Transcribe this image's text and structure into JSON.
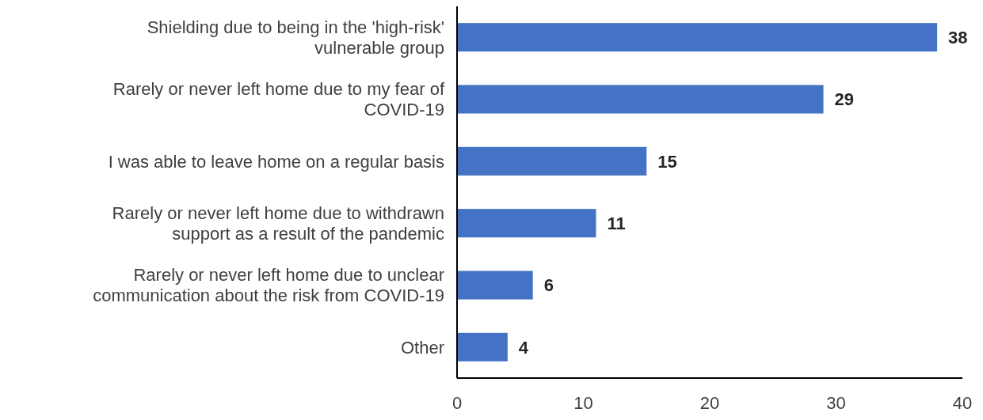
{
  "chart_data": {
    "type": "bar",
    "orientation": "horizontal",
    "categories": [
      "Shielding due to being in the 'high-risk' vulnerable group",
      "Rarely or never left home due to my fear of COVID-19",
      "I was able to leave home on a regular basis",
      "Rarely or never left home due to withdrawn support as a result of the pandemic",
      "Rarely or never left home due to unclear communication about the risk from COVID-19",
      "Other"
    ],
    "values": [
      38,
      29,
      15,
      11,
      6,
      4
    ],
    "color": "#4472c4",
    "xlim": [
      0,
      40
    ],
    "xticks": [
      0,
      10,
      20,
      30,
      40
    ],
    "grid": false,
    "data_labels": true
  }
}
